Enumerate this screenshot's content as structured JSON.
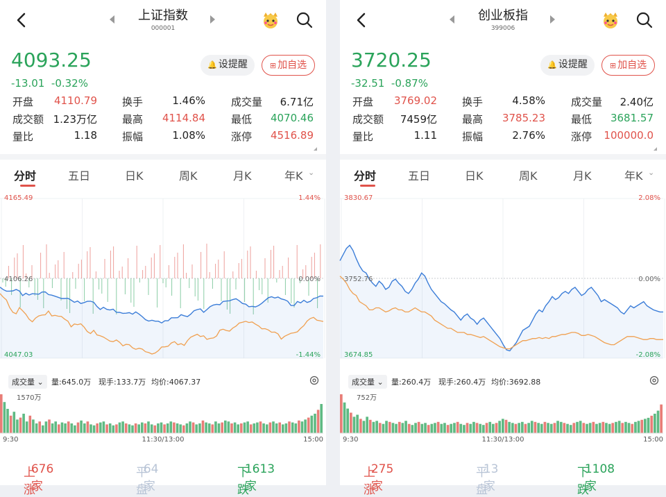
{
  "colors": {
    "up": "#e0524a",
    "down": "#2aa35a",
    "flat": "#b8c4d6",
    "price_line": "#3b7dd8",
    "avg_line": "#f0a050"
  },
  "icons": {
    "back": "back-icon",
    "prev": "prev-index-icon",
    "next": "next-index-icon",
    "mascot": "mascot-icon",
    "search": "search-icon",
    "bell": "bell-icon",
    "plus": "plus-icon",
    "gear": "gear-icon"
  },
  "panels": [
    {
      "title": "上证指数",
      "code": "000001",
      "price": "4093.25",
      "change": "-13.01",
      "change_pct": "-0.32%",
      "remind_label": "设提醒",
      "add_label": "加自选",
      "stats": [
        [
          {
            "label": "开盘",
            "value": "4110.79",
            "tone": "red"
          },
          {
            "label": "换手",
            "value": "1.46%",
            "tone": ""
          },
          {
            "label": "成交量",
            "value": "6.71亿",
            "tone": ""
          }
        ],
        [
          {
            "label": "成交额",
            "value": "1.23万亿",
            "tone": ""
          },
          {
            "label": "最高",
            "value": "4114.84",
            "tone": "red"
          },
          {
            "label": "最低",
            "value": "4070.46",
            "tone": "green"
          }
        ],
        [
          {
            "label": "量比",
            "value": "1.18",
            "tone": ""
          },
          {
            "label": "振幅",
            "value": "1.08%",
            "tone": ""
          },
          {
            "label": "涨停",
            "value": "4516.89",
            "tone": "red"
          }
        ]
      ],
      "tabs": [
        "分时",
        "五日",
        "日K",
        "周K",
        "月K",
        "年K"
      ],
      "chart_data": {
        "type": "line",
        "y_max": "4165.49",
        "y_mid": "4106.26",
        "y_min": "4047.03",
        "pct_max": "1.44%",
        "pct_mid": "0.00%",
        "pct_min": "-1.44%",
        "ylim": [
          4047.03,
          4165.49
        ],
        "prev_close": 4106.26,
        "series": [
          {
            "values": [
              4099.7,
              4097.9,
              4096.8,
              4096.8,
              4097.0,
              4098.0,
              4096.9,
              4093.5,
              4095.2,
              4093.9,
              4094.9,
              4094.7,
              4094.5,
              4096.1,
              4096.2,
              4094.2,
              4093.8,
              4093.0,
              4092.2,
              4091.3,
              4091.3,
              4091.5,
              4090.1,
              4088.5,
              4089.4,
              4087.6,
              4088.3,
              4089.2,
              4089.3,
              4088.5,
              4085.4,
              4083.2,
              4084.8,
              4083.3,
              4082.8,
              4083.4,
              4081.1,
              4081.0,
              4080.3,
              4080.4,
              4080.8,
              4079.7,
              4081.4,
              4079.8,
              4077.9,
              4075.6,
              4074.6,
              4075.2,
              4074.5,
              4074.5,
              4073.2,
              4074.8,
              4074.8,
              4077.0,
              4077.0,
              4077.1,
              4079.3,
              4078.5,
              4077.9,
              4079.7,
              4082.2,
              4083.1,
              4083.6,
              4081.1,
              4083.1,
              4085.3,
              4086.5,
              4087.0,
              4086.7,
              4089.1,
              4089.4,
              4089.6,
              4090.5,
              4091.1,
              4089.6,
              4087.6,
              4087.1,
              4085.2,
              4085.5,
              4085.1,
              4086.1,
              4087.8,
              4089.9,
              4091.9,
              4092.6,
              4091.7,
              4092.4,
              4091.0,
              4090.4,
              4089.3,
              4086.1,
              4086.1,
              4089.1,
              4088.1,
              4090.0,
              4088.4,
              4089.2,
              4091.3,
              4091.9,
              4093.2,
              4093.1
            ]
          },
          {
            "values": [
              4095.0,
              4092.3,
              4090.2,
              4084.5,
              4081.0,
              4080.0,
              4084.5,
              4082.2,
              4079.6,
              4076.0,
              4074.0,
              4076.8,
              4078.4,
              4079.0,
              4079.2,
              4082.0,
              4078.4,
              4078.8,
              4078.2,
              4078.0,
              4076.0,
              4074.5,
              4070.3,
              4072.4,
              4071.9,
              4072.5,
              4070.1,
              4066.8,
              4065.3,
              4067.7,
              4064.3,
              4063.6,
              4062.7,
              4061.2,
              4059.7,
              4059.3,
              4060.5,
              4058.8,
              4056.2,
              4057.3,
              4057.0,
              4054.7,
              4053.6,
              4054.4,
              4053.8,
              4051.8,
              4051.2,
              4050.1,
              4050.9,
              4052.6,
              4055.3,
              4055.4,
              4055.9,
              4058.3,
              4059.3,
              4057.0,
              4057.8,
              4056.5,
              4060.1,
              4062.6,
              4063.7,
              4064.8,
              4063.1,
              4063.6,
              4061.0,
              4061.7,
              4062.0,
              4063.5,
              4067.8,
              4068.5,
              4067.6,
              4067.1,
              4069.4,
              4070.8,
              4073.1,
              4073.7,
              4074.4,
              4073.5,
              4073.9,
              4072.3,
              4071.0,
              4068.8,
              4068.9,
              4068.0,
              4066.3,
              4066.4,
              4065.0,
              4061.2,
              4063.2,
              4064.4,
              4065.5,
              4065.9,
              4066.6,
              4069.2,
              4071.2,
              4074.6,
              4076.5,
              4077.3,
              4075.2,
              4074.8,
              4074.3
            ]
          }
        ],
        "volume_bars": [
          40,
          32,
          25,
          18,
          22,
          14,
          16,
          20,
          12,
          18,
          14,
          10,
          12,
          8,
          12,
          14,
          10,
          12,
          9,
          11,
          10,
          12,
          10,
          8,
          11,
          13,
          10,
          12,
          9,
          8,
          10,
          11,
          12,
          9,
          10,
          8,
          9,
          11,
          12,
          10,
          9,
          8,
          10,
          9,
          11,
          10,
          12,
          9,
          8,
          10,
          11,
          9,
          10,
          12,
          11,
          10,
          9,
          8,
          10,
          12,
          11,
          9,
          10,
          13,
          11,
          10,
          9,
          12,
          10,
          11,
          13,
          12,
          10,
          11,
          9,
          10,
          11,
          12,
          9,
          10,
          11,
          12,
          10,
          9,
          11,
          12,
          10,
          11,
          9,
          10,
          12,
          11,
          10,
          13,
          12,
          14,
          16,
          18,
          20,
          24,
          30
        ],
        "x_start": "9:30",
        "x_mid": "11:30/13:00",
        "x_end": "15:00"
      },
      "volume_summary": {
        "selector": "成交量",
        "volume": "量:645.0万",
        "current": "现手:133.7万",
        "avg": "均价:4067.37",
        "peak": "1570万"
      },
      "breadth": {
        "up_label": "上涨",
        "up": "676家",
        "flat_label": "平盘",
        "flat": "64家",
        "down_label": "下跌",
        "down": "1613家"
      }
    },
    {
      "title": "创业板指",
      "code": "399006",
      "price": "3720.25",
      "change": "-32.51",
      "change_pct": "-0.87%",
      "remind_label": "设提醒",
      "add_label": "加自选",
      "stats": [
        [
          {
            "label": "开盘",
            "value": "3769.02",
            "tone": "red"
          },
          {
            "label": "换手",
            "value": "4.58%",
            "tone": ""
          },
          {
            "label": "成交量",
            "value": "2.40亿",
            "tone": ""
          }
        ],
        [
          {
            "label": "成交额",
            "value": "7459亿",
            "tone": ""
          },
          {
            "label": "最高",
            "value": "3785.23",
            "tone": "red"
          },
          {
            "label": "最低",
            "value": "3681.57",
            "tone": "green"
          }
        ],
        [
          {
            "label": "量比",
            "value": "1.11",
            "tone": ""
          },
          {
            "label": "振幅",
            "value": "2.76%",
            "tone": ""
          },
          {
            "label": "涨停",
            "value": "100000.0",
            "tone": "red"
          }
        ]
      ],
      "tabs": [
        "分时",
        "五日",
        "日K",
        "周K",
        "月K",
        "年K"
      ],
      "chart_data": {
        "type": "line",
        "y_max": "3830.67",
        "y_mid": "3752.76",
        "y_min": "3674.85",
        "pct_max": "2.08%",
        "pct_mid": "0.00%",
        "pct_min": "-2.08%",
        "ylim": [
          3674.85,
          3830.67
        ],
        "prev_close": 3752.76,
        "series": [
          {
            "values": [
              3770,
              3776,
              3782,
              3785,
              3780,
              3772,
              3765,
              3760,
              3758,
              3752,
              3748,
              3745,
              3750,
              3747,
              3742,
              3744,
              3750,
              3752,
              3748,
              3745,
              3740,
              3738,
              3742,
              3748,
              3752,
              3758,
              3755,
              3748,
              3742,
              3738,
              3734,
              3730,
              3728,
              3725,
              3722,
              3720,
              3716,
              3712,
              3716,
              3718,
              3714,
              3712,
              3708,
              3712,
              3714,
              3710,
              3706,
              3702,
              3698,
              3694,
              3688,
              3683,
              3682,
              3686,
              3690,
              3696,
              3702,
              3704,
              3706,
              3712,
              3718,
              3722,
              3720,
              3726,
              3730,
              3735,
              3732,
              3734,
              3738,
              3740,
              3738,
              3742,
              3744,
              3740,
              3736,
              3738,
              3742,
              3744,
              3740,
              3736,
              3730,
              3732,
              3730,
              3728,
              3726,
              3724,
              3720,
              3718,
              3722,
              3726,
              3724,
              3726,
              3728,
              3730,
              3726,
              3724,
              3722,
              3721,
              3720,
              3720
            ]
          },
          {
            "values": [
              3755,
              3752,
              3748,
              3742,
              3738,
              3736,
              3730,
              3728,
              3726,
              3722,
              3722,
              3724,
              3724,
              3722,
              3720,
              3721,
              3723,
              3724,
              3722,
              3722,
              3720,
              3720,
              3722,
              3724,
              3722,
              3720,
              3720,
              3718,
              3716,
              3712,
              3710,
              3708,
              3706,
              3704,
              3704,
              3702,
              3700,
              3700,
              3700,
              3698,
              3698,
              3697,
              3696,
              3695,
              3696,
              3694,
              3692,
              3690,
              3688,
              3686,
              3685,
              3684,
              3684,
              3686,
              3688,
              3690,
              3692,
              3692,
              3693,
              3694,
              3694,
              3695,
              3694,
              3695,
              3694,
              3696,
              3696,
              3697,
              3698,
              3698,
              3699,
              3700,
              3700,
              3699,
              3697,
              3697,
              3698,
              3697,
              3696,
              3694,
              3692,
              3690,
              3689,
              3688,
              3688,
              3690,
              3692,
              3694,
              3696,
              3696,
              3696,
              3695,
              3694,
              3693,
              3693,
              3694,
              3694,
              3693,
              3693,
              3693
            ]
          }
        ],
        "volume_bars": [
          38,
          30,
          24,
          20,
          16,
          18,
          14,
          12,
          16,
          13,
          11,
          12,
          10,
          9,
          12,
          11,
          10,
          9,
          11,
          10,
          12,
          9,
          8,
          10,
          11,
          9,
          10,
          8,
          9,
          10,
          11,
          9,
          10,
          8,
          9,
          10,
          11,
          9,
          8,
          10,
          9,
          11,
          10,
          9,
          8,
          10,
          11,
          9,
          10,
          12,
          14,
          13,
          11,
          10,
          9,
          10,
          11,
          9,
          10,
          12,
          11,
          10,
          9,
          11,
          10,
          9,
          10,
          12,
          11,
          10,
          9,
          8,
          10,
          11,
          12,
          10,
          9,
          10,
          11,
          9,
          10,
          11,
          10,
          9,
          10,
          11,
          12,
          10,
          11,
          10,
          9,
          11,
          12,
          13,
          14,
          15,
          17,
          19,
          22,
          28
        ],
        "x_start": "9:30",
        "x_mid": "11:30/13:00",
        "x_end": "15:00"
      },
      "volume_summary": {
        "selector": "成交量",
        "volume": "量:260.4万",
        "current": "现手:260.4万",
        "avg": "均价:3692.88",
        "peak": "752万"
      },
      "breadth": {
        "up_label": "上涨",
        "up": "275家",
        "flat_label": "平盘",
        "flat": "13家",
        "down_label": "下跌",
        "down": "1108家"
      }
    }
  ]
}
